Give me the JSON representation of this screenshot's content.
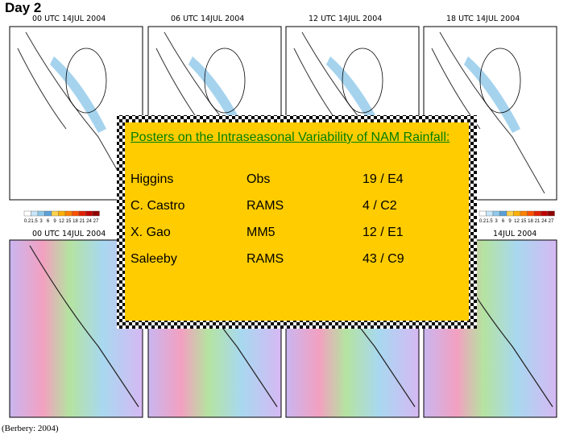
{
  "header": {
    "title": "Day 2"
  },
  "panels": {
    "top": [
      "00 UTC 14JUL 2004",
      "06 UTC 14JUL 2004",
      "12 UTC 14JUL 2004",
      "18 UTC 14JUL 2004"
    ],
    "bottom": [
      "00 UTC 14JUL 2004",
      "14JUL 2004"
    ]
  },
  "colorbar": [
    "0.2",
    "1.5",
    "3",
    "6",
    "9",
    "12",
    "15",
    "18",
    "21",
    "24",
    "27"
  ],
  "box": {
    "title": "Posters on the Intraseasonal Variability of NAM Rainfall:",
    "rows": [
      [
        "Higgins",
        "Obs",
        "19 / E4"
      ],
      [
        "C. Castro",
        "RAMS",
        "4 / C2"
      ],
      [
        "X. Gao",
        "MM5",
        "12 / E1"
      ],
      [
        "Saleeby",
        "RAMS",
        "43 / C9"
      ]
    ]
  },
  "citation": "(Berbery: 2004)"
}
